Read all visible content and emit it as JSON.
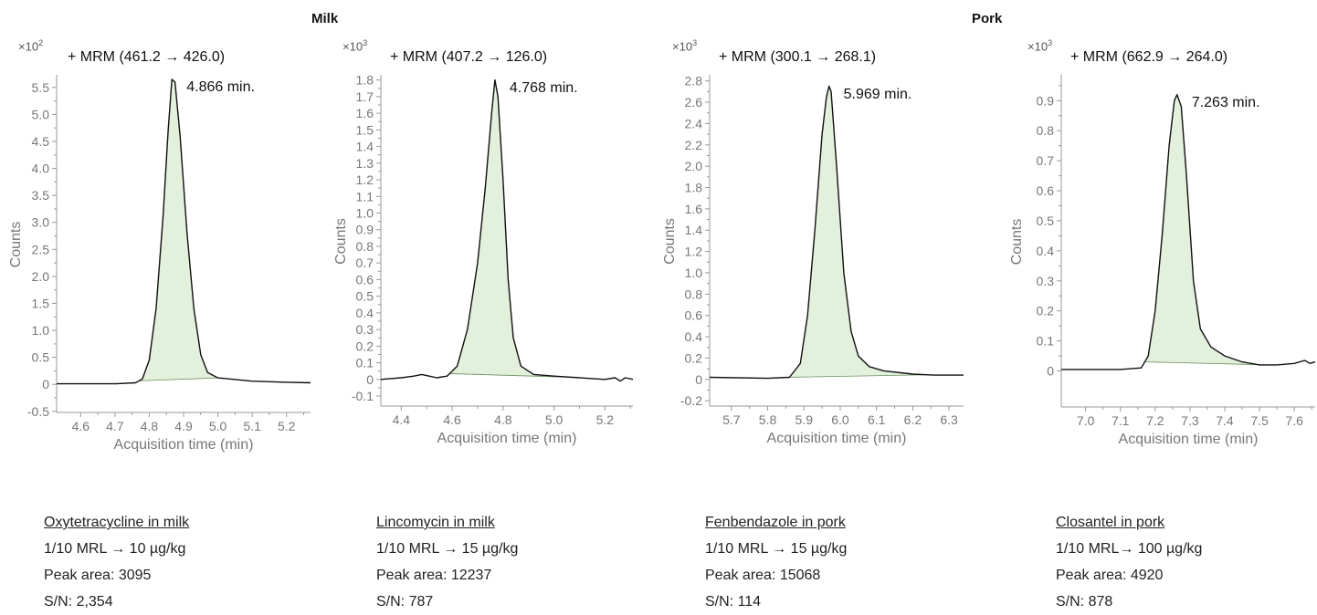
{
  "groups": {
    "milk": "Milk",
    "pork": "Pork"
  },
  "chart_data": [
    {
      "type": "line",
      "title": "+ MRM (461.2 → 426.0)",
      "scale_label": {
        "base": "×10",
        "exp": "2"
      },
      "xlabel": "Acquisition time (min)",
      "ylabel": "Counts",
      "xlim": [
        4.53,
        5.27
      ],
      "ylim": [
        -0.52,
        5.7
      ],
      "x_ticks": [
        "4.6",
        "4.7",
        "4.8",
        "4.9",
        "5.0",
        "5.1",
        "5.2"
      ],
      "y_ticks": [
        "-0.5",
        "0",
        "0.5",
        "1.0",
        "1.5",
        "2.0",
        "2.5",
        "3.0",
        "3.5",
        "4.0",
        "4.5",
        "5.0",
        "5.5"
      ],
      "peak": {
        "label": "4.866 min.",
        "rt": 4.866
      },
      "fill_range": [
        4.77,
        5.0
      ],
      "points": [
        [
          4.53,
          0.01
        ],
        [
          4.7,
          0.01
        ],
        [
          4.76,
          0.03
        ],
        [
          4.78,
          0.1
        ],
        [
          4.8,
          0.45
        ],
        [
          4.82,
          1.4
        ],
        [
          4.84,
          3.1
        ],
        [
          4.855,
          4.7
        ],
        [
          4.866,
          5.65
        ],
        [
          4.875,
          5.6
        ],
        [
          4.89,
          4.6
        ],
        [
          4.91,
          2.8
        ],
        [
          4.93,
          1.4
        ],
        [
          4.95,
          0.55
        ],
        [
          4.97,
          0.22
        ],
        [
          5.0,
          0.12
        ],
        [
          5.05,
          0.09
        ],
        [
          5.1,
          0.06
        ],
        [
          5.2,
          0.04
        ],
        [
          5.27,
          0.03
        ]
      ],
      "caption": {
        "name": "Oxytetracycline in milk",
        "mrl": "1/10 MRL → 10 µg/kg",
        "area": "Peak area: 3095",
        "sn": "S/N: 2,354"
      }
    },
    {
      "type": "line",
      "title": "+ MRM (407.2 → 126.0)",
      "scale_label": {
        "base": "×10",
        "exp": "3"
      },
      "xlabel": "Acquisition time (min)",
      "ylabel": "Counts",
      "xlim": [
        4.32,
        5.31
      ],
      "ylim": [
        -0.16,
        1.82
      ],
      "x_ticks": [
        "4.4",
        "4.6",
        "4.8",
        "5.0",
        "5.2"
      ],
      "y_ticks": [
        "-0.1",
        "0",
        "0.1",
        "0.2",
        "0.3",
        "0.4",
        "0.5",
        "0.6",
        "0.7",
        "0.8",
        "0.9",
        "1.0",
        "1.1",
        "1.2",
        "1.3",
        "1.4",
        "1.5",
        "1.6",
        "1.7",
        "1.8"
      ],
      "peak": {
        "label": "4.768 min.",
        "rt": 4.768
      },
      "fill_range": [
        4.59,
        5.07
      ],
      "points": [
        [
          4.32,
          0.0
        ],
        [
          4.4,
          0.01
        ],
        [
          4.45,
          0.02
        ],
        [
          4.48,
          0.03
        ],
        [
          4.51,
          0.02
        ],
        [
          4.54,
          0.01
        ],
        [
          4.58,
          0.02
        ],
        [
          4.62,
          0.08
        ],
        [
          4.66,
          0.3
        ],
        [
          4.7,
          0.7
        ],
        [
          4.73,
          1.15
        ],
        [
          4.755,
          1.6
        ],
        [
          4.768,
          1.8
        ],
        [
          4.78,
          1.7
        ],
        [
          4.8,
          1.2
        ],
        [
          4.82,
          0.6
        ],
        [
          4.84,
          0.25
        ],
        [
          4.87,
          0.08
        ],
        [
          4.92,
          0.03
        ],
        [
          5.0,
          0.02
        ],
        [
          5.1,
          0.01
        ],
        [
          5.2,
          0.0
        ],
        [
          5.24,
          0.01
        ],
        [
          5.26,
          -0.01
        ],
        [
          5.28,
          0.01
        ],
        [
          5.31,
          0.0
        ]
      ],
      "caption": {
        "name": "Lincomycin in milk",
        "mrl": "1/10 MRL → 15 µg/kg",
        "area": "Peak area: 12237",
        "sn": "S/N: 787"
      }
    },
    {
      "type": "line",
      "title": "+ MRM (300.1 → 268.1)",
      "scale_label": {
        "base": "×10",
        "exp": "3"
      },
      "xlabel": "Acquisition time (min)",
      "ylabel": "Counts",
      "xlim": [
        5.64,
        6.34
      ],
      "ylim": [
        -0.25,
        2.84
      ],
      "x_ticks": [
        "5.7",
        "5.8",
        "5.9",
        "6.0",
        "6.1",
        "6.2",
        "6.3"
      ],
      "y_ticks": [
        "-0.2",
        "0",
        "0.2",
        "0.4",
        "0.6",
        "0.8",
        "1.0",
        "1.2",
        "1.4",
        "1.6",
        "1.8",
        "2.0",
        "2.2",
        "2.4",
        "2.6",
        "2.8"
      ],
      "peak": {
        "label": "5.969 min.",
        "rt": 5.969
      },
      "fill_range": [
        5.86,
        6.24
      ],
      "points": [
        [
          5.64,
          0.02
        ],
        [
          5.8,
          0.01
        ],
        [
          5.86,
          0.02
        ],
        [
          5.89,
          0.15
        ],
        [
          5.91,
          0.6
        ],
        [
          5.93,
          1.4
        ],
        [
          5.95,
          2.3
        ],
        [
          5.962,
          2.65
        ],
        [
          5.969,
          2.75
        ],
        [
          5.975,
          2.7
        ],
        [
          5.99,
          2.0
        ],
        [
          6.01,
          1.0
        ],
        [
          6.03,
          0.45
        ],
        [
          6.05,
          0.22
        ],
        [
          6.08,
          0.12
        ],
        [
          6.12,
          0.08
        ],
        [
          6.2,
          0.05
        ],
        [
          6.26,
          0.04
        ],
        [
          6.34,
          0.04
        ]
      ],
      "caption": {
        "name": "Fenbendazole in pork",
        "mrl": "1/10 MRL → 15 µg/kg",
        "area": "Peak area: 15068",
        "sn": "S/N: 114"
      }
    },
    {
      "type": "line",
      "title": "+ MRM (662.9 → 264.0)",
      "scale_label": {
        "base": "×10",
        "exp": "3"
      },
      "xlabel": "Acquisition time (min)",
      "ylabel": "Counts",
      "xlim": [
        6.93,
        7.66
      ],
      "ylim": [
        -0.12,
        0.98
      ],
      "x_ticks": [
        "7.0",
        "7.1",
        "7.2",
        "7.3",
        "7.4",
        "7.5",
        "7.6"
      ],
      "y_ticks": [
        "0",
        "0.1",
        "0.2",
        "0.3",
        "0.4",
        "0.5",
        "0.6",
        "0.7",
        "0.8",
        "0.9"
      ],
      "peak": {
        "label": "7.263 min.",
        "rt": 7.263
      },
      "fill_range": [
        7.17,
        7.53
      ],
      "points": [
        [
          6.93,
          0.005
        ],
        [
          7.1,
          0.005
        ],
        [
          7.16,
          0.01
        ],
        [
          7.18,
          0.05
        ],
        [
          7.2,
          0.2
        ],
        [
          7.22,
          0.45
        ],
        [
          7.24,
          0.75
        ],
        [
          7.255,
          0.9
        ],
        [
          7.263,
          0.92
        ],
        [
          7.275,
          0.88
        ],
        [
          7.29,
          0.65
        ],
        [
          7.31,
          0.3
        ],
        [
          7.33,
          0.14
        ],
        [
          7.36,
          0.08
        ],
        [
          7.4,
          0.05
        ],
        [
          7.45,
          0.03
        ],
        [
          7.5,
          0.02
        ],
        [
          7.55,
          0.02
        ],
        [
          7.6,
          0.025
        ],
        [
          7.63,
          0.035
        ],
        [
          7.645,
          0.025
        ],
        [
          7.66,
          0.03
        ]
      ],
      "caption": {
        "name": "Closantel in pork",
        "mrl": "1/10 MRL→ 100 µg/kg",
        "area": "Peak area: 4920",
        "sn": "S/N: 878"
      }
    }
  ]
}
